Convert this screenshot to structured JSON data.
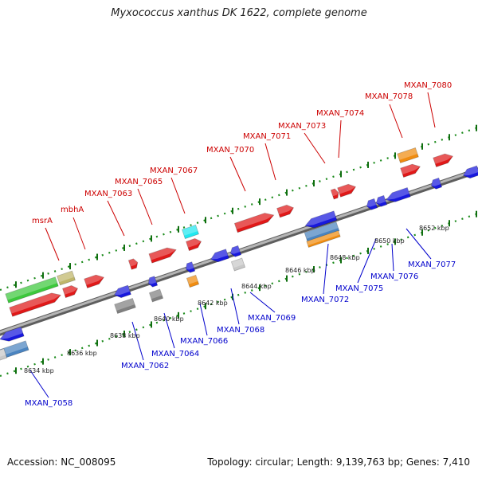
{
  "title": "Myxococcus xanthus DK 1622, complete genome",
  "footer": {
    "accession": "Accession: NC_008095",
    "info": "Topology: circular; Length: 9,139,763 bp; Genes: 7,410"
  },
  "colors": {
    "backbone": "#8a8a8a",
    "tick": "#1a8a1a",
    "label_top": "#cc0000",
    "label_bottom": "#0000cc",
    "red": "#e01818",
    "blue": "#1818dd",
    "green": "#3cc83c",
    "khaki": "#bfb66a",
    "orange": "#f08c10",
    "cyan": "#20e8f0",
    "gray": "#808080",
    "lightgray": "#c8c8c8",
    "steelblue": "#4a84c0"
  },
  "kbp_labels": [
    "8634 kbp",
    "8636 kbp",
    "8638 kbp",
    "8640 kbp",
    "8642 kbp",
    "8644 kbp",
    "8646 kbp",
    "8648 kbp",
    "8650 kbp",
    "8652 kbp"
  ],
  "top_labels": [
    "msrA",
    "mbhA",
    "MXAN_7063",
    "MXAN_7065",
    "MXAN_7067",
    "MXAN_7070",
    "MXAN_7071",
    "MXAN_7073",
    "MXAN_7074",
    "MXAN_7078",
    "MXAN_7080"
  ],
  "bottom_labels": [
    "MXAN_7058",
    "MXAN_7062",
    "MXAN_7064",
    "MXAN_7066",
    "MXAN_7068",
    "MXAN_7069",
    "MXAN_7072",
    "MXAN_7075",
    "MXAN_7076",
    "MXAN_7077"
  ]
}
